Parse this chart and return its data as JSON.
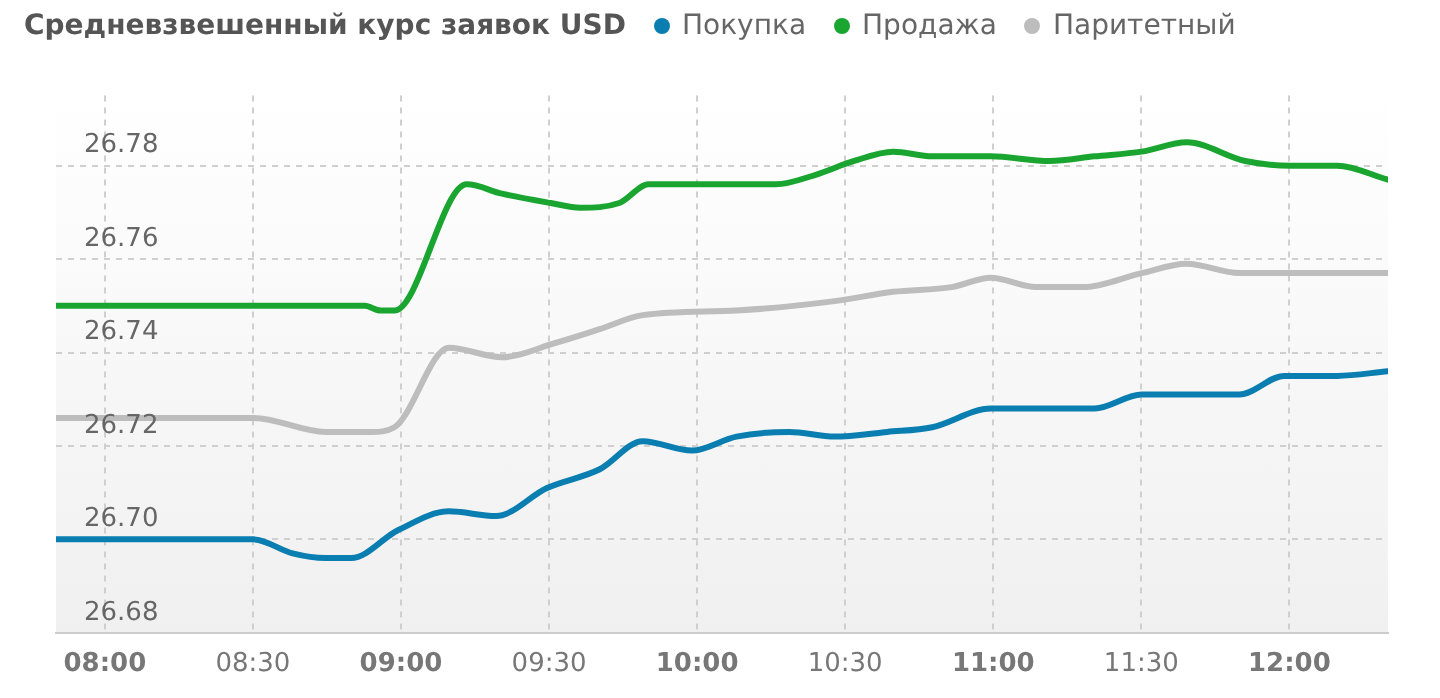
{
  "chart_data": {
    "type": "line",
    "title": "Средневзвешенный курс заявок USD",
    "legend": "top right",
    "grid": true,
    "marker": "none",
    "line_style": "solid",
    "xlim": [
      7.835,
      12.333
    ],
    "ylim": [
      26.68,
      26.795
    ],
    "xticks": [
      {
        "value": 8,
        "label": "08:00"
      },
      {
        "value": 8.5,
        "label": "08:30"
      },
      {
        "value": 9,
        "label": "09:00"
      },
      {
        "value": 9.5,
        "label": "09:30"
      },
      {
        "value": 10,
        "label": "10:00"
      },
      {
        "value": 10.5,
        "label": "10:30"
      },
      {
        "value": 11,
        "label": "11:00"
      },
      {
        "value": 11.5,
        "label": "11:30"
      },
      {
        "value": 12,
        "label": "12:00"
      }
    ],
    "yticks": [
      26.68,
      {
        "value": 26.7,
        "label": "26.70"
      },
      26.72,
      26.74,
      26.76,
      26.78
    ],
    "series": [
      {
        "name": "Покупка",
        "color": "#0a7eb0",
        "x": [
          7.835,
          8.416,
          8.502,
          8.634,
          8.746,
          8.832,
          8.991,
          9.162,
          9.321,
          9.493,
          9.671,
          9.816,
          9.982,
          10.133,
          10.312,
          10.464,
          10.642,
          10.794,
          10.992,
          11.342,
          11.501,
          11.672,
          11.831,
          11.983,
          12.161,
          12.333
        ],
        "values": [
          26.7,
          26.7,
          26.7,
          26.697,
          26.696,
          26.696,
          26.702,
          26.706,
          26.705,
          26.711,
          26.715,
          26.721,
          26.719,
          26.722,
          26.723,
          26.722,
          26.723,
          26.724,
          26.728,
          26.728,
          26.731,
          26.731,
          26.731,
          26.735,
          26.735,
          26.736
        ]
      },
      {
        "name": "Продажа",
        "color": "#1aa531",
        "x": [
          7.835,
          8.878,
          8.931,
          8.978,
          9.222,
          9.341,
          9.506,
          9.605,
          9.737,
          9.836,
          10.001,
          10.133,
          10.266,
          10.398,
          10.53,
          10.662,
          10.794,
          10.992,
          11.19,
          11.342,
          11.501,
          11.653,
          11.851,
          12.003,
          12.161,
          12.333
        ],
        "values": [
          26.75,
          26.75,
          26.749,
          26.749,
          26.776,
          26.774,
          26.772,
          26.771,
          26.772,
          26.776,
          26.776,
          26.776,
          26.776,
          26.778,
          26.781,
          26.783,
          26.782,
          26.782,
          26.781,
          26.782,
          26.783,
          26.785,
          26.781,
          26.78,
          26.78,
          26.777
        ]
      },
      {
        "name": "Паритетный",
        "color": "#bdbdbd",
        "x": [
          7.835,
          8.502,
          8.746,
          8.898,
          8.978,
          9.162,
          9.341,
          9.519,
          9.671,
          9.816,
          10.133,
          10.464,
          10.662,
          10.86,
          10.992,
          11.144,
          11.303,
          11.501,
          11.653,
          11.831,
          11.963,
          12.333
        ],
        "values": [
          26.726,
          26.726,
          26.723,
          26.723,
          26.724,
          26.741,
          26.739,
          26.742,
          26.745,
          26.748,
          26.749,
          26.751,
          26.753,
          26.754,
          26.756,
          26.754,
          26.754,
          26.757,
          26.759,
          26.757,
          26.757,
          26.757
        ]
      }
    ]
  }
}
